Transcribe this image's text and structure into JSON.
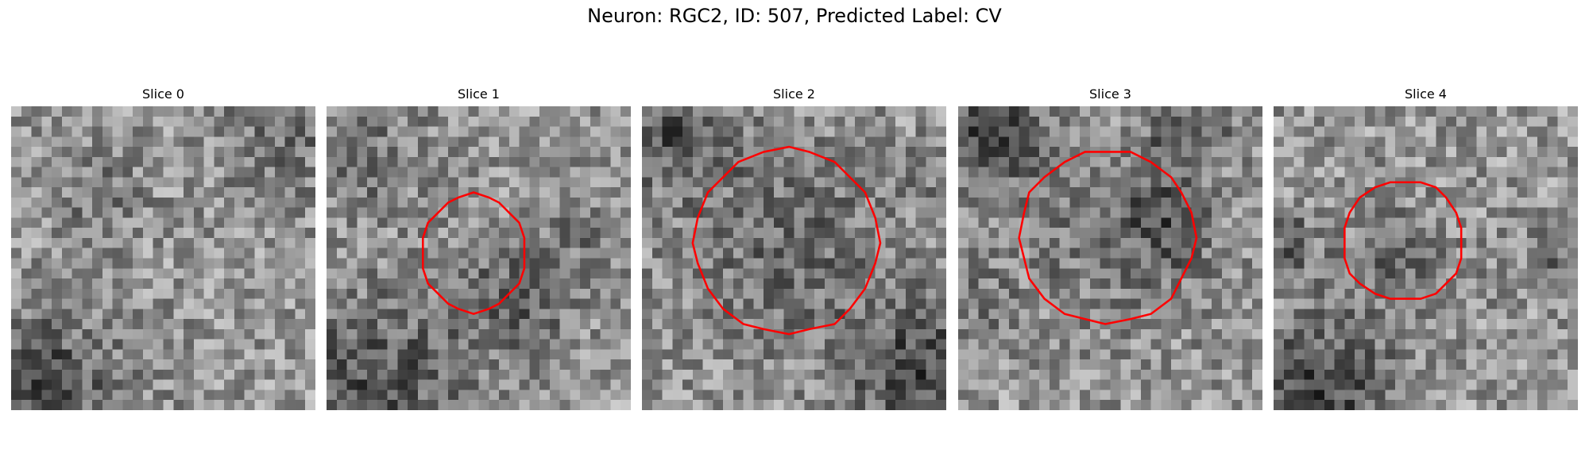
{
  "figure": {
    "title": "Neuron: RGC2, ID: 507, Predicted Label: CV",
    "contour_color": "#ff0000",
    "colormap": "grayscale",
    "panels": [
      {
        "title": "Slice 0",
        "has_contour": false,
        "seed": 11
      },
      {
        "title": "Slice 1",
        "has_contour": true,
        "seed": 23
      },
      {
        "title": "Slice 2",
        "has_contour": true,
        "seed": 37
      },
      {
        "title": "Slice 3",
        "has_contour": true,
        "seed": 41
      },
      {
        "title": "Slice 4",
        "has_contour": true,
        "seed": 53
      }
    ]
  }
}
